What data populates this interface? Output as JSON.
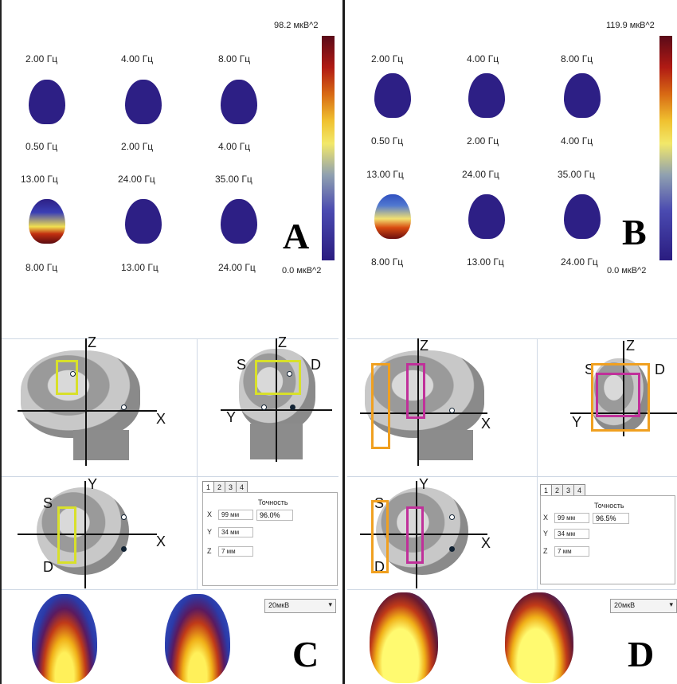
{
  "panel_a": {
    "max_label": "98.2 мкВ^2",
    "min_label": "0.0 мкВ^2",
    "letter": "A",
    "row1_freqs": [
      "2.00 Гц",
      "4.00 Гц",
      "8.00 Гц"
    ],
    "row2_freqs": [
      "0.50 Гц",
      "2.00 Гц",
      "4.00 Гц"
    ],
    "row3_freqs": [
      "13.00 Гц",
      "24.00 Гц",
      "35.00 Гц"
    ],
    "row4_freqs": [
      "8.00 Гц",
      "13.00 Гц",
      "24.00 Гц"
    ]
  },
  "panel_b": {
    "max_label": "119.9 мкВ^2",
    "min_label": "0.0 мкВ^2",
    "letter": "B",
    "row1_freqs": [
      "2.00 Гц",
      "4.00 Гц",
      "8.00 Гц"
    ],
    "row2_freqs": [
      "0.50 Гц",
      "2.00 Гц",
      "4.00 Гц"
    ],
    "row3_freqs": [
      "13.00 Гц",
      "24.00 Гц",
      "35.00 Гц"
    ],
    "row4_freqs": [
      "8.00 Гц",
      "13.00 Гц",
      "24.00 Гц"
    ]
  },
  "panel_c": {
    "letter": "C",
    "axis_z": "Z",
    "axis_x": "X",
    "axis_y": "Y",
    "label_s": "S",
    "label_d": "D",
    "tabs": [
      "1",
      "2",
      "3",
      "4"
    ],
    "accuracy_label": "Точность",
    "accuracy_value": "96.0%",
    "coords": [
      {
        "key": "X",
        "value": "99 мм"
      },
      {
        "key": "Y",
        "value": "34 мм"
      },
      {
        "key": "Z",
        "value": "7 мм"
      }
    ],
    "scale_select": "20мкВ"
  },
  "panel_d": {
    "letter": "D",
    "axis_z": "Z",
    "axis_x": "X",
    "axis_y": "Y",
    "label_s": "S",
    "label_d": "D",
    "tabs": [
      "1",
      "2",
      "3",
      "4"
    ],
    "accuracy_label": "Точность",
    "accuracy_value": "96.5%",
    "coords": [
      {
        "key": "X",
        "value": "99 мм"
      },
      {
        "key": "Y",
        "value": "34 мм"
      },
      {
        "key": "Z",
        "value": "7 мм"
      }
    ],
    "scale_select": "20мкВ"
  },
  "colors": {
    "colormap_low": "#2a1c80",
    "colormap_mid": "#f2e86a",
    "colormap_high": "#5a0a18",
    "roi_yellow": "#d8e02a",
    "roi_orange": "#f0a020",
    "roi_magenta": "#c0309a"
  }
}
